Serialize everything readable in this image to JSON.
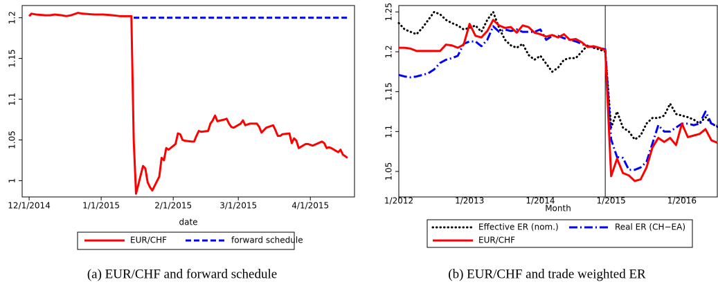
{
  "chart_data": [
    {
      "type": "line",
      "xlabel": "date",
      "caption": "(a) EUR/CHF and forward schedule",
      "xlim": [
        "11/28/2014",
        "4/20/2015"
      ],
      "xticks": [
        "12/1/2014",
        "1/1/2015",
        "2/1/2015",
        "3/1/2015",
        "4/1/2015"
      ],
      "ylim": [
        0.98,
        1.215
      ],
      "yticks": [
        1,
        1.05,
        1.1,
        1.15,
        1.2
      ],
      "grid": false,
      "series": [
        {
          "name": "EUR/CHF",
          "color": "#ff0000",
          "line_style": "solid",
          "x": [
            "12/1/2014",
            "12/2/2014",
            "12/4/2014",
            "12/8/2014",
            "12/10/2014",
            "12/12/2014",
            "12/15/2014",
            "12/17/2014",
            "12/19/2014",
            "12/22/2014",
            "12/24/2014",
            "12/29/2014",
            "1/2/2015",
            "1/6/2015",
            "1/9/2015",
            "1/14/2015",
            "1/15/2015",
            "1/16/2015",
            "1/19/2015",
            "1/20/2015",
            "1/21/2015",
            "1/22/2015",
            "1/23/2015",
            "1/26/2015",
            "1/27/2015",
            "1/28/2015",
            "1/29/2015",
            "1/30/2015",
            "2/2/2015",
            "2/3/2015",
            "2/4/2015",
            "2/5/2015",
            "2/6/2015",
            "2/9/2015",
            "2/10/2015",
            "2/11/2015",
            "2/12/2015",
            "2/13/2015",
            "2/16/2015",
            "2/17/2015",
            "2/18/2015",
            "2/19/2015",
            "2/20/2015",
            "2/23/2015",
            "2/24/2015",
            "2/25/2015",
            "2/26/2015",
            "2/27/2015",
            "3/2/2015",
            "3/3/2015",
            "3/4/2015",
            "3/5/2015",
            "3/6/2015",
            "3/9/2015",
            "3/10/2015",
            "3/11/2015",
            "3/12/2015",
            "3/13/2015",
            "3/16/2015",
            "3/17/2015",
            "3/18/2015",
            "3/19/2015",
            "3/20/2015",
            "3/23/2015",
            "3/24/2015",
            "3/25/2015",
            "3/26/2015",
            "3/27/2015",
            "3/30/2015",
            "3/31/2015",
            "4/1/2015",
            "4/2/2015",
            "4/6/2015",
            "4/7/2015",
            "4/8/2015",
            "4/9/2015",
            "4/10/2015",
            "4/13/2015",
            "4/14/2015",
            "4/15/2015",
            "4/16/2015",
            "4/17/2015"
          ],
          "values": [
            1.202,
            1.205,
            1.204,
            1.203,
            1.203,
            1.204,
            1.203,
            1.202,
            1.203,
            1.206,
            1.205,
            1.204,
            1.204,
            1.203,
            1.202,
            1.202,
            1.05,
            0.984,
            1.018,
            1.015,
            0.998,
            0.992,
            0.988,
            1.005,
            1.028,
            1.025,
            1.04,
            1.038,
            1.045,
            1.058,
            1.057,
            1.05,
            1.049,
            1.048,
            1.048,
            1.055,
            1.061,
            1.06,
            1.061,
            1.07,
            1.074,
            1.08,
            1.073,
            1.075,
            1.076,
            1.07,
            1.066,
            1.065,
            1.07,
            1.074,
            1.068,
            1.069,
            1.07,
            1.07,
            1.066,
            1.059,
            1.062,
            1.065,
            1.068,
            1.062,
            1.055,
            1.055,
            1.057,
            1.058,
            1.046,
            1.052,
            1.049,
            1.04,
            1.045,
            1.045,
            1.044,
            1.043,
            1.048,
            1.046,
            1.04,
            1.041,
            1.04,
            1.035,
            1.038,
            1.032,
            1.03,
            1.028
          ]
        },
        {
          "name": "forward schedule",
          "color": "#0000ff",
          "line_style": "dashed",
          "x": [
            "1/15/2015",
            "4/17/2015"
          ],
          "values": [
            1.2,
            1.2
          ]
        }
      ]
    },
    {
      "type": "line",
      "xlabel": "Month",
      "caption": "(b) EUR/CHF and trade weighted ER",
      "xlim": [
        "1/2012",
        "7/2016"
      ],
      "xticks": [
        "1/2012",
        "1/2013",
        "1/2014",
        "1/2015",
        "1/2016"
      ],
      "ylim": [
        1.018,
        1.258
      ],
      "yticks": [
        1.05,
        1.1,
        1.15,
        1.2,
        1.25
      ],
      "grid": false,
      "vline": "12/2014",
      "x": [
        "1/2012",
        "2/2012",
        "3/2012",
        "4/2012",
        "5/2012",
        "6/2012",
        "7/2012",
        "8/2012",
        "9/2012",
        "10/2012",
        "11/2012",
        "12/2012",
        "1/2013",
        "2/2013",
        "3/2013",
        "4/2013",
        "5/2013",
        "6/2013",
        "7/2013",
        "8/2013",
        "9/2013",
        "10/2013",
        "11/2013",
        "12/2013",
        "1/2014",
        "2/2014",
        "3/2014",
        "4/2014",
        "5/2014",
        "6/2014",
        "7/2014",
        "8/2014",
        "9/2014",
        "10/2014",
        "11/2014",
        "12/2014",
        "1/2015",
        "2/2015",
        "3/2015",
        "4/2015",
        "5/2015",
        "6/2015",
        "7/2015",
        "8/2015",
        "9/2015",
        "10/2015",
        "11/2015",
        "12/2015",
        "1/2016",
        "2/2016",
        "3/2016",
        "4/2016",
        "5/2016",
        "6/2016",
        "7/2016"
      ],
      "series": [
        {
          "name": "Effective ER (nom.)",
          "color": "#000000",
          "line_style": "dotted",
          "values": [
            1.236,
            1.228,
            1.225,
            1.222,
            1.23,
            1.24,
            1.25,
            1.247,
            1.24,
            1.236,
            1.233,
            1.228,
            1.23,
            1.233,
            1.225,
            1.24,
            1.25,
            1.23,
            1.215,
            1.208,
            1.205,
            1.21,
            1.196,
            1.19,
            1.195,
            1.185,
            1.175,
            1.18,
            1.19,
            1.192,
            1.192,
            1.2,
            1.208,
            1.205,
            1.203,
            1.2,
            1.105,
            1.125,
            1.105,
            1.1,
            1.09,
            1.095,
            1.11,
            1.117,
            1.117,
            1.12,
            1.135,
            1.122,
            1.12,
            1.118,
            1.115,
            1.11,
            1.118,
            1.11,
            1.106
          ]
        },
        {
          "name": "Real ER (CH−EA)",
          "color": "#0000ff",
          "line_style": "dashdot",
          "values": [
            1.171,
            1.169,
            1.168,
            1.169,
            1.171,
            1.173,
            1.178,
            1.186,
            1.19,
            1.192,
            1.195,
            1.21,
            1.213,
            1.213,
            1.207,
            1.215,
            1.232,
            1.225,
            1.228,
            1.226,
            1.228,
            1.225,
            1.225,
            1.225,
            1.228,
            1.215,
            1.22,
            1.22,
            1.217,
            1.215,
            1.213,
            1.21,
            1.207,
            1.206,
            1.205,
            1.203,
            1.09,
            1.068,
            1.067,
            1.052,
            1.052,
            1.055,
            1.062,
            1.085,
            1.108,
            1.1,
            1.1,
            1.105,
            1.11,
            1.11,
            1.108,
            1.11,
            1.125,
            1.11,
            1.107
          ]
        },
        {
          "name": "EUR/CHF",
          "color": "#ff0000",
          "line_style": "solid",
          "values": [
            1.205,
            1.205,
            1.204,
            1.201,
            1.201,
            1.201,
            1.201,
            1.201,
            1.209,
            1.208,
            1.205,
            1.209,
            1.235,
            1.22,
            1.218,
            1.226,
            1.24,
            1.233,
            1.23,
            1.231,
            1.224,
            1.233,
            1.231,
            1.224,
            1.222,
            1.219,
            1.221,
            1.218,
            1.222,
            1.215,
            1.216,
            1.212,
            1.206,
            1.207,
            1.205,
            1.202,
            1.044,
            1.066,
            1.048,
            1.045,
            1.038,
            1.04,
            1.055,
            1.08,
            1.092,
            1.087,
            1.092,
            1.083,
            1.11,
            1.093,
            1.095,
            1.097,
            1.103,
            1.089,
            1.086
          ]
        }
      ]
    }
  ]
}
